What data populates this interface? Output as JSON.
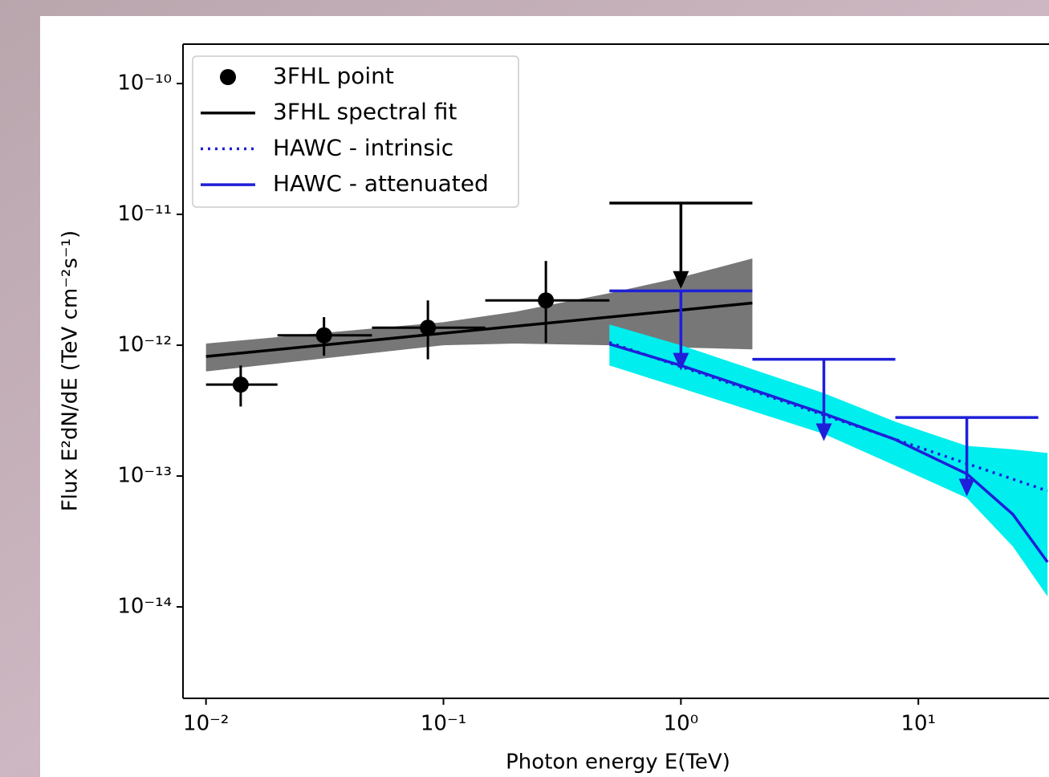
{
  "chart_data": {
    "type": "line",
    "xlabel": "Photon energy  E(TeV)",
    "ylabel": "Flux  E²dN/dE (TeV cm⁻²s⁻¹)",
    "xscale": "log",
    "yscale": "log",
    "xlim": [
      0.008,
      35.5
    ],
    "ylim": [
      2e-15,
      2e-10
    ],
    "xticks": [
      {
        "value": 0.01,
        "label": "10⁻²"
      },
      {
        "value": 0.1,
        "label": "10⁻¹"
      },
      {
        "value": 1,
        "label": "10⁰"
      },
      {
        "value": 10,
        "label": "10¹"
      }
    ],
    "yticks": [
      {
        "value": 1e-14,
        "label": "10⁻¹⁴"
      },
      {
        "value": 1e-13,
        "label": "10⁻¹³"
      },
      {
        "value": 1e-12,
        "label": "10⁻¹²"
      },
      {
        "value": 1e-11,
        "label": "10⁻¹¹"
      },
      {
        "value": 1e-10,
        "label": "10⁻¹⁰"
      }
    ],
    "legend": "upper left",
    "bands": [
      {
        "color": "#777777",
        "x": [
          0.01,
          0.1,
          0.2,
          0.5,
          1,
          2
        ],
        "upper": [
          1.03e-12,
          1.5e-12,
          1.8e-12,
          2.5e-12,
          3.3e-12,
          4.6e-12
        ],
        "lower": [
          6.3e-13,
          1e-12,
          1.03e-12,
          1e-12,
          9.6e-13,
          9.3e-13
        ]
      },
      {
        "color": "#00eeee",
        "x": [
          0.5,
          1,
          4,
          8,
          16,
          25,
          35
        ],
        "upper": [
          1.44e-12,
          1e-12,
          4.3e-13,
          2.6e-13,
          1.7e-13,
          1.6e-13,
          1.5e-13
        ],
        "lower": [
          7e-13,
          4.7e-13,
          2.1e-13,
          1.2e-13,
          6.8e-14,
          2.9e-14,
          1.2e-14
        ]
      }
    ],
    "series": [
      {
        "name": "3FHL point",
        "style": "errorbar",
        "color": "#000000",
        "x": [
          0.014,
          0.0314,
          0.086,
          0.27
        ],
        "values": [
          5e-13,
          1.19e-12,
          1.36e-12,
          2.2e-12
        ],
        "x_low": [
          0.01,
          0.02,
          0.05,
          0.15
        ],
        "x_high": [
          0.02,
          0.05,
          0.15,
          0.5
        ],
        "y_low": [
          3.4e-13,
          8.3e-13,
          7.8e-13,
          1.04e-12
        ],
        "y_high": [
          7e-13,
          1.64e-12,
          2.2e-12,
          4.4e-12
        ]
      },
      {
        "name": "3FHL spectral fit",
        "style": "solid",
        "color": "#000000",
        "x": [
          0.01,
          2
        ],
        "values": [
          8.2e-13,
          2.1e-12
        ]
      },
      {
        "name": "HAWC - intrinsic",
        "style": "dotted",
        "color": "#1f1fd9",
        "x": [
          0.5,
          35
        ],
        "values": [
          1.05e-12,
          7.7e-14
        ]
      },
      {
        "name": "HAWC - attenuated",
        "style": "solid",
        "color": "#1f1fd9",
        "x": [
          0.5,
          1,
          4,
          8,
          16,
          25,
          35
        ],
        "values": [
          1.02e-12,
          7e-13,
          3e-13,
          1.9e-13,
          1.04e-13,
          5.1e-14,
          2.2e-14
        ]
      }
    ],
    "upper_limits": [
      {
        "color": "#000000",
        "x": [
          1
        ],
        "x_low": [
          0.5
        ],
        "x_high": [
          2
        ],
        "values": [
          1.22e-11
        ],
        "arrow_tip": [
          2.7e-12
        ]
      },
      {
        "color": "#1f1fd9",
        "x": [
          1,
          4,
          16
        ],
        "x_low": [
          0.5,
          2,
          8
        ],
        "x_high": [
          2,
          8,
          32
        ],
        "values": [
          2.6e-12,
          7.8e-13,
          2.8e-13
        ],
        "arrow_tip": [
          6.4e-13,
          1.85e-13,
          7e-14
        ]
      }
    ]
  }
}
